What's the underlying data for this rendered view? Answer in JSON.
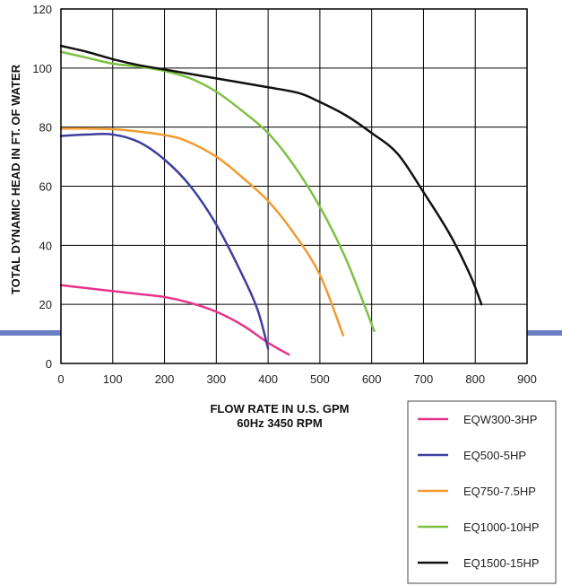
{
  "chart_data": {
    "type": "line",
    "xlabel": [
      "FLOW RATE IN U.S. GPM",
      "60Hz 3450 RPM"
    ],
    "ylabel": "TOTAL DYNAMIC HEAD IN FT. OF WATER",
    "xlim": [
      0,
      900
    ],
    "ylim": [
      0,
      120
    ],
    "x_ticks": [
      0,
      100,
      200,
      300,
      400,
      500,
      600,
      700,
      800,
      900
    ],
    "y_ticks": [
      0,
      20,
      40,
      60,
      80,
      100,
      120
    ],
    "grid": true,
    "legend_position": "bottom-right",
    "series": [
      {
        "name": "EQW300-3HP",
        "color": "#e8338a",
        "points": [
          [
            0,
            26.5
          ],
          [
            50,
            25.5
          ],
          [
            100,
            24.5
          ],
          [
            150,
            23.5
          ],
          [
            200,
            22.5
          ],
          [
            250,
            20.5
          ],
          [
            300,
            17.5
          ],
          [
            350,
            13
          ],
          [
            400,
            7
          ],
          [
            440,
            3
          ]
        ]
      },
      {
        "name": "EQ500-5HP",
        "color": "#3d3f9e",
        "points": [
          [
            0,
            77
          ],
          [
            50,
            77.5
          ],
          [
            100,
            77.5
          ],
          [
            150,
            75
          ],
          [
            200,
            69
          ],
          [
            250,
            60
          ],
          [
            300,
            47
          ],
          [
            350,
            30
          ],
          [
            380,
            18
          ],
          [
            400,
            5
          ]
        ]
      },
      {
        "name": "EQ750-7.5HP",
        "color": "#f29a2e",
        "points": [
          [
            0,
            79.5
          ],
          [
            50,
            79.5
          ],
          [
            100,
            79.3
          ],
          [
            150,
            78.5
          ],
          [
            200,
            77.3
          ],
          [
            240,
            75.5
          ],
          [
            300,
            70
          ],
          [
            350,
            63
          ],
          [
            400,
            55
          ],
          [
            450,
            44
          ],
          [
            500,
            30
          ],
          [
            545,
            9.5
          ]
        ]
      },
      {
        "name": "EQ1000-10HP",
        "color": "#7dc242",
        "points": [
          [
            0,
            105.5
          ],
          [
            50,
            103.5
          ],
          [
            100,
            101.5
          ],
          [
            150,
            100.5
          ],
          [
            200,
            99
          ],
          [
            250,
            96.5
          ],
          [
            300,
            92
          ],
          [
            350,
            85.5
          ],
          [
            400,
            78
          ],
          [
            450,
            67
          ],
          [
            500,
            53
          ],
          [
            550,
            35.5
          ],
          [
            605,
            11
          ]
        ]
      },
      {
        "name": "EQ1500-15HP",
        "color": "#111111",
        "points": [
          [
            0,
            107.5
          ],
          [
            50,
            105.5
          ],
          [
            100,
            103
          ],
          [
            150,
            101
          ],
          [
            200,
            99.5
          ],
          [
            300,
            96.5
          ],
          [
            400,
            93.5
          ],
          [
            460,
            91.5
          ],
          [
            500,
            88.5
          ],
          [
            550,
            84
          ],
          [
            600,
            78
          ],
          [
            650,
            71
          ],
          [
            700,
            58
          ],
          [
            750,
            44
          ],
          [
            790,
            30
          ],
          [
            812,
            20
          ]
        ]
      }
    ]
  }
}
